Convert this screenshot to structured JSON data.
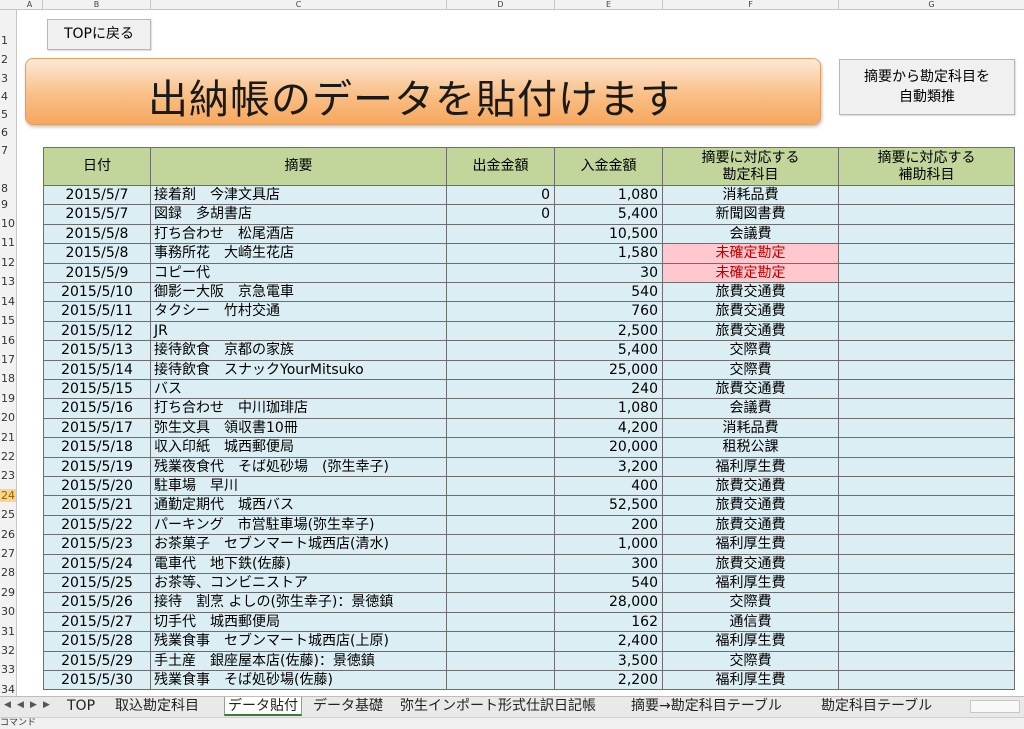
{
  "sheet": {
    "columns": [
      "A",
      "B",
      "C",
      "D",
      "E",
      "F",
      "G"
    ],
    "rows": [
      "1",
      "2",
      "3",
      "4",
      "5",
      "6",
      "7",
      "8",
      "9",
      "10",
      "11",
      "12",
      "13",
      "14",
      "15",
      "16",
      "17",
      "18",
      "19",
      "20",
      "21",
      "22",
      "23",
      "24",
      "25",
      "26",
      "27",
      "28",
      "29",
      "30",
      "31",
      "32",
      "33",
      "34"
    ],
    "selected_row": "24"
  },
  "buttons": {
    "top": "TOPに戻る",
    "auto_line1": "摘要から勘定科目を",
    "auto_line2": "自動類推"
  },
  "banner": {
    "title": "出納帳のデータを貼付けます"
  },
  "table": {
    "headers": {
      "date": "日付",
      "desc": "摘要",
      "out": "出金金額",
      "in": "入金金額",
      "acct_l1": "摘要に対応する",
      "acct_l2": "勘定科目",
      "sub_l1": "摘要に対応する",
      "sub_l2": "補助科目"
    },
    "rows": [
      {
        "date": "2015/5/7",
        "desc": "接着剤　今津文具店",
        "out": "0",
        "in": "1,080",
        "acct": "消耗品費",
        "warn": false
      },
      {
        "date": "2015/5/7",
        "desc": "図録　多胡書店",
        "out": "0",
        "in": "5,400",
        "acct": "新聞図書費",
        "warn": false
      },
      {
        "date": "2015/5/8",
        "desc": "打ち合わせ　松尾酒店",
        "out": "",
        "in": "10,500",
        "acct": "会議費",
        "warn": false
      },
      {
        "date": "2015/5/8",
        "desc": "事務所花　大崎生花店",
        "out": "",
        "in": "1,580",
        "acct": "未確定勘定",
        "warn": true
      },
      {
        "date": "2015/5/9",
        "desc": "コピー代",
        "out": "",
        "in": "30",
        "acct": "未確定勘定",
        "warn": true
      },
      {
        "date": "2015/5/10",
        "desc": "御影ー大阪　京急電車",
        "out": "",
        "in": "540",
        "acct": "旅費交通費",
        "warn": false
      },
      {
        "date": "2015/5/11",
        "desc": "タクシー　竹村交通",
        "out": "",
        "in": "760",
        "acct": "旅費交通費",
        "warn": false
      },
      {
        "date": "2015/5/12",
        "desc": "JR",
        "out": "",
        "in": "2,500",
        "acct": "旅費交通費",
        "warn": false
      },
      {
        "date": "2015/5/13",
        "desc": "接待飲食　京都の家族",
        "out": "",
        "in": "5,400",
        "acct": "交際費",
        "warn": false
      },
      {
        "date": "2015/5/14",
        "desc": "接待飲食　スナックYourMitsuko",
        "out": "",
        "in": "25,000",
        "acct": "交際費",
        "warn": false
      },
      {
        "date": "2015/5/15",
        "desc": "バス",
        "out": "",
        "in": "240",
        "acct": "旅費交通費",
        "warn": false
      },
      {
        "date": "2015/5/16",
        "desc": "打ち合わせ　中川珈琲店",
        "out": "",
        "in": "1,080",
        "acct": "会議費",
        "warn": false
      },
      {
        "date": "2015/5/17",
        "desc": "弥生文具　領収書10冊",
        "out": "",
        "in": "4,200",
        "acct": "消耗品費",
        "warn": false
      },
      {
        "date": "2015/5/18",
        "desc": "収入印紙　城西郵便局",
        "out": "",
        "in": "20,000",
        "acct": "租税公課",
        "warn": false
      },
      {
        "date": "2015/5/19",
        "desc": "残業夜食代　そば処砂場　(弥生幸子)",
        "out": "",
        "in": "3,200",
        "acct": "福利厚生費",
        "warn": false
      },
      {
        "date": "2015/5/20",
        "desc": "駐車場　早川",
        "out": "",
        "in": "400",
        "acct": "旅費交通費",
        "warn": false
      },
      {
        "date": "2015/5/21",
        "desc": "通勤定期代　城西バス",
        "out": "",
        "in": "52,500",
        "acct": "旅費交通費",
        "warn": false
      },
      {
        "date": "2015/5/22",
        "desc": "パーキング　市営駐車場(弥生幸子)",
        "out": "",
        "in": "200",
        "acct": "旅費交通費",
        "warn": false
      },
      {
        "date": "2015/5/23",
        "desc": "お茶菓子　セブンマート城西店(清水)",
        "out": "",
        "in": "1,000",
        "acct": "福利厚生費",
        "warn": false
      },
      {
        "date": "2015/5/24",
        "desc": "電車代　地下鉄(佐藤)",
        "out": "",
        "in": "300",
        "acct": "旅費交通費",
        "warn": false
      },
      {
        "date": "2015/5/25",
        "desc": "お茶等、コンビニストア",
        "out": "",
        "in": "540",
        "acct": "福利厚生費",
        "warn": false
      },
      {
        "date": "2015/5/26",
        "desc": "接待　割烹 よしの(弥生幸子)：景徳鎮",
        "out": "",
        "in": "28,000",
        "acct": "交際費",
        "warn": false
      },
      {
        "date": "2015/5/27",
        "desc": "切手代　城西郵便局",
        "out": "",
        "in": "162",
        "acct": "通信費",
        "warn": false
      },
      {
        "date": "2015/5/28",
        "desc": "残業食事　セブンマート城西店(上原)",
        "out": "",
        "in": "2,400",
        "acct": "福利厚生費",
        "warn": false
      },
      {
        "date": "2015/5/29",
        "desc": "手土産　銀座屋本店(佐藤)：景徳鎮",
        "out": "",
        "in": "3,500",
        "acct": "交際費",
        "warn": false
      },
      {
        "date": "2015/5/30",
        "desc": "残業食事　そば処砂場(佐藤)",
        "out": "",
        "in": "2,200",
        "acct": "福利厚生費",
        "warn": false
      }
    ]
  },
  "tabs": [
    "TOP",
    "取込勘定科目",
    "データ貼付",
    "データ基礎",
    "弥生インポート形式仕訳日記帳",
    "摘要→勘定科目テーブル",
    "勘定科目テーブル"
  ],
  "active_tab": "データ貼付",
  "status": {
    "mode": "コマンド"
  }
}
